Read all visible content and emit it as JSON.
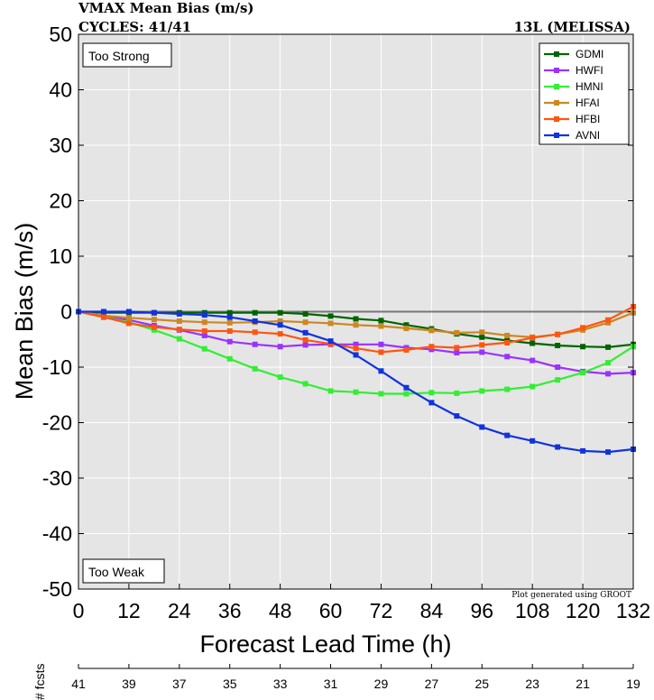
{
  "chart_data": {
    "type": "line",
    "title": "VMAX Mean Bias (m/s)",
    "subtitle_left": "CYCLES: 41/41",
    "subtitle_right": "13L (MELISSA)",
    "xlabel": "Forecast Lead Time (h)",
    "ylabel": "Mean Bias (m/s)",
    "xlim": [
      0,
      132
    ],
    "ylim": [
      -50,
      50
    ],
    "xticks": [
      0,
      12,
      24,
      36,
      48,
      60,
      72,
      84,
      96,
      108,
      120,
      132
    ],
    "yticks": [
      50,
      40,
      30,
      20,
      10,
      0,
      -10,
      -20,
      -30,
      -40,
      -50
    ],
    "legend_position": "top-right",
    "annotations": {
      "top": "Too Strong",
      "bottom": "Too Weak",
      "credit": "Plot generated using GROOT"
    },
    "x": [
      0,
      6,
      12,
      18,
      24,
      30,
      36,
      42,
      48,
      54,
      60,
      66,
      72,
      78,
      84,
      90,
      96,
      102,
      108,
      114,
      120,
      126,
      132
    ],
    "series": [
      {
        "name": "GDMI",
        "color": "#006400",
        "values": [
          0,
          -0.2,
          -0.2,
          -0.2,
          -0.2,
          -0.2,
          -0.2,
          -0.2,
          -0.2,
          -0.4,
          -0.8,
          -1.3,
          -1.6,
          -2.4,
          -3.1,
          -4.0,
          -4.6,
          -5.2,
          -5.7,
          -6.1,
          -6.3,
          -6.4,
          -5.9
        ]
      },
      {
        "name": "HWFI",
        "color": "#9933ff",
        "values": [
          0,
          -0.8,
          -1.5,
          -2.5,
          -3.3,
          -4.3,
          -5.4,
          -5.9,
          -6.3,
          -6.0,
          -5.9,
          -5.9,
          -5.9,
          -6.5,
          -6.8,
          -7.4,
          -7.3,
          -8.1,
          -8.8,
          -10.0,
          -10.8,
          -11.2,
          -11.0
        ]
      },
      {
        "name": "HMNI",
        "color": "#33ee33",
        "values": [
          0,
          -1.0,
          -1.9,
          -3.3,
          -4.9,
          -6.7,
          -8.5,
          -10.3,
          -11.8,
          -13.0,
          -14.3,
          -14.5,
          -14.8,
          -14.8,
          -14.6,
          -14.7,
          -14.3,
          -14.0,
          -13.5,
          -12.3,
          -11.0,
          -9.2,
          -6.3
        ]
      },
      {
        "name": "HFAI",
        "color": "#cc8822",
        "values": [
          0,
          -0.7,
          -1.1,
          -1.4,
          -1.7,
          -1.9,
          -2.0,
          -1.9,
          -1.7,
          -1.9,
          -2.1,
          -2.4,
          -2.6,
          -3.0,
          -3.4,
          -3.8,
          -3.7,
          -4.3,
          -4.6,
          -4.1,
          -3.3,
          -2.0,
          -0.2
        ]
      },
      {
        "name": "HFBI",
        "color": "#ff5511",
        "values": [
          0,
          -1.0,
          -2.1,
          -2.8,
          -3.2,
          -3.5,
          -3.5,
          -3.7,
          -4.0,
          -5.1,
          -5.8,
          -6.6,
          -7.3,
          -6.9,
          -6.3,
          -6.5,
          -6.0,
          -5.6,
          -4.7,
          -4.1,
          -2.9,
          -1.5,
          0.9
        ]
      },
      {
        "name": "AVNI",
        "color": "#1133dd",
        "values": [
          0,
          0,
          0,
          -0.2,
          -0.4,
          -0.6,
          -1.0,
          -1.7,
          -2.4,
          -3.8,
          -5.3,
          -7.8,
          -10.7,
          -13.7,
          -16.4,
          -18.8,
          -20.8,
          -22.3,
          -23.3,
          -24.4,
          -25.1,
          -25.3,
          -24.8
        ]
      }
    ],
    "fcst_counts_label": "# fcsts",
    "fcst_counts": [
      41,
      39,
      37,
      35,
      33,
      31,
      29,
      27,
      25,
      23,
      21,
      19
    ]
  }
}
